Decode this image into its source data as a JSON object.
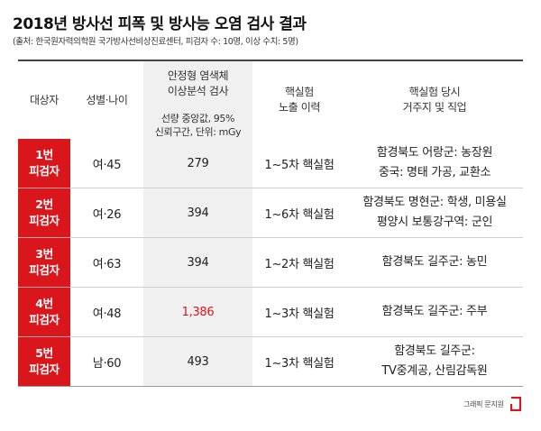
{
  "title": "2018년 방사선 피폭 및 방사능 오염 검사 결과",
  "source": "(출처: 한국원자력의학원 국가방사선비상진료센터, 피검자 수: 10명, 이상 수치: 5명)",
  "headers": {
    "subject": "대상자",
    "sex_age": "성별·나이",
    "analysis_line1": "안정형 염색체",
    "analysis_line2": "이상분석 검사",
    "analysis_sub1": "선량 중앙값, 95%",
    "analysis_sub2": "신뢰구간, 단위: mGy",
    "nuclear_line1": "핵실험",
    "nuclear_line2": "노출 이력",
    "residence_line1": "핵실험 당시",
    "residence_line2": "거주지 및 직업"
  },
  "rows": [
    {
      "id_line1": "1번",
      "id_line2": "피검자",
      "sex_age": "여·45",
      "dose": "279",
      "exposure": "1~5차 핵실험",
      "residence_line1": "함경북도 어랑군: 농장원",
      "residence_line2": "중국: 명태 가공, 교환소"
    },
    {
      "id_line1": "2번",
      "id_line2": "피검자",
      "sex_age": "여·26",
      "dose": "394",
      "exposure": "1~6차 핵실험",
      "residence_line1": "함경북도 명현군: 학생, 미용실",
      "residence_line2": "평양시 보통강구역: 군인"
    },
    {
      "id_line1": "3번",
      "id_line2": "피검자",
      "sex_age": "여·63",
      "dose": "394",
      "exposure": "1~2차 핵실험",
      "residence_line1": "함경북도 길주군: 농민",
      "residence_line2": ""
    },
    {
      "id_line1": "4번",
      "id_line2": "피검자",
      "sex_age": "여·48",
      "dose": "1,386",
      "exposure": "1~3차 핵실험",
      "residence_line1": "함경북도 길주군: 주부",
      "residence_line2": ""
    },
    {
      "id_line1": "5번",
      "id_line2": "피검자",
      "sex_age": "남·60",
      "dose": "493",
      "exposure": "1~3차 핵실험",
      "residence_line1": "함경북도 길주군:",
      "residence_line2": "TV중계공, 산림감독원"
    }
  ],
  "highlight_color": "#d9161c",
  "credit": "그래픽 문지원",
  "logo_icon": "red-bracket-logo"
}
